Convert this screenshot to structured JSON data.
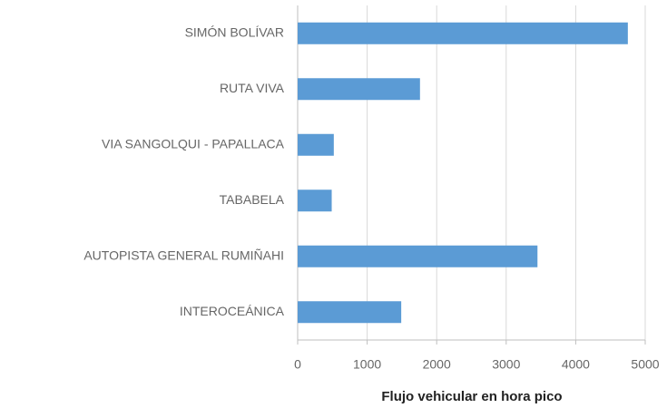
{
  "chart_data": {
    "type": "barh",
    "xlabel": "Flujo vehicular en hora pico",
    "categories": [
      "SIMÓN BOLÍVAR",
      "RUTA VIVA",
      "VIA SANGOLQUI - PAPALLACA",
      "TABABELA",
      "AUTOPISTA GENERAL RUMIÑAHI",
      "INTEROCEÁNICA"
    ],
    "values": [
      4750,
      1760,
      520,
      490,
      3450,
      1490
    ],
    "color": "#5b9bd5",
    "xlim": [
      0,
      5000
    ],
    "xticks": [
      0,
      1000,
      2000,
      3000,
      4000,
      5000
    ],
    "grid": true
  }
}
